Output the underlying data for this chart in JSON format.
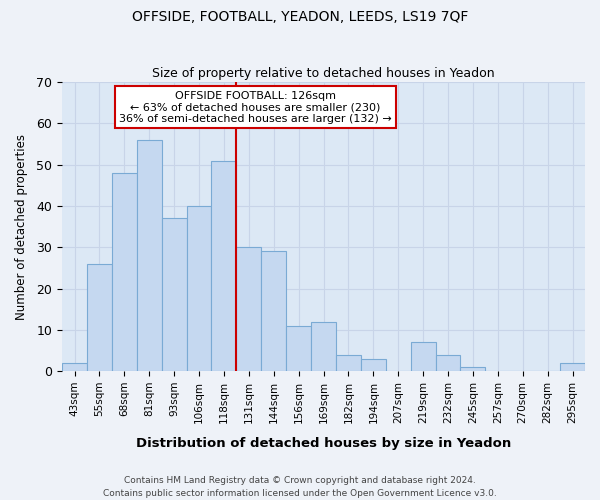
{
  "title_line1": "OFFSIDE, FOOTBALL, YEADON, LEEDS, LS19 7QF",
  "title_line2": "Size of property relative to detached houses in Yeadon",
  "xlabel": "Distribution of detached houses by size in Yeadon",
  "ylabel": "Number of detached properties",
  "categories": [
    "43sqm",
    "55sqm",
    "68sqm",
    "81sqm",
    "93sqm",
    "106sqm",
    "118sqm",
    "131sqm",
    "144sqm",
    "156sqm",
    "169sqm",
    "182sqm",
    "194sqm",
    "207sqm",
    "219sqm",
    "232sqm",
    "245sqm",
    "257sqm",
    "270sqm",
    "282sqm",
    "295sqm"
  ],
  "values": [
    2,
    26,
    48,
    56,
    37,
    40,
    51,
    30,
    29,
    11,
    12,
    4,
    3,
    0,
    7,
    4,
    1,
    0,
    0,
    0,
    2
  ],
  "bar_color": "#c5d8f0",
  "bar_edge_color": "#7aaad4",
  "vline_color": "#cc0000",
  "vline_x_index": 7,
  "annotation_line1": "OFFSIDE FOOTBALL: 126sqm",
  "annotation_line2": "← 63% of detached houses are smaller (230)",
  "annotation_line3": "36% of semi-detached houses are larger (132) →",
  "annotation_box_color": "#ffffff",
  "annotation_box_edge": "#cc0000",
  "ylim": [
    0,
    70
  ],
  "yticks": [
    0,
    10,
    20,
    30,
    40,
    50,
    60,
    70
  ],
  "grid_color": "#c8d4e8",
  "bg_color": "#dce8f5",
  "fig_bg_color": "#eef2f8",
  "footer_line1": "Contains HM Land Registry data © Crown copyright and database right 2024.",
  "footer_line2": "Contains public sector information licensed under the Open Government Licence v3.0."
}
